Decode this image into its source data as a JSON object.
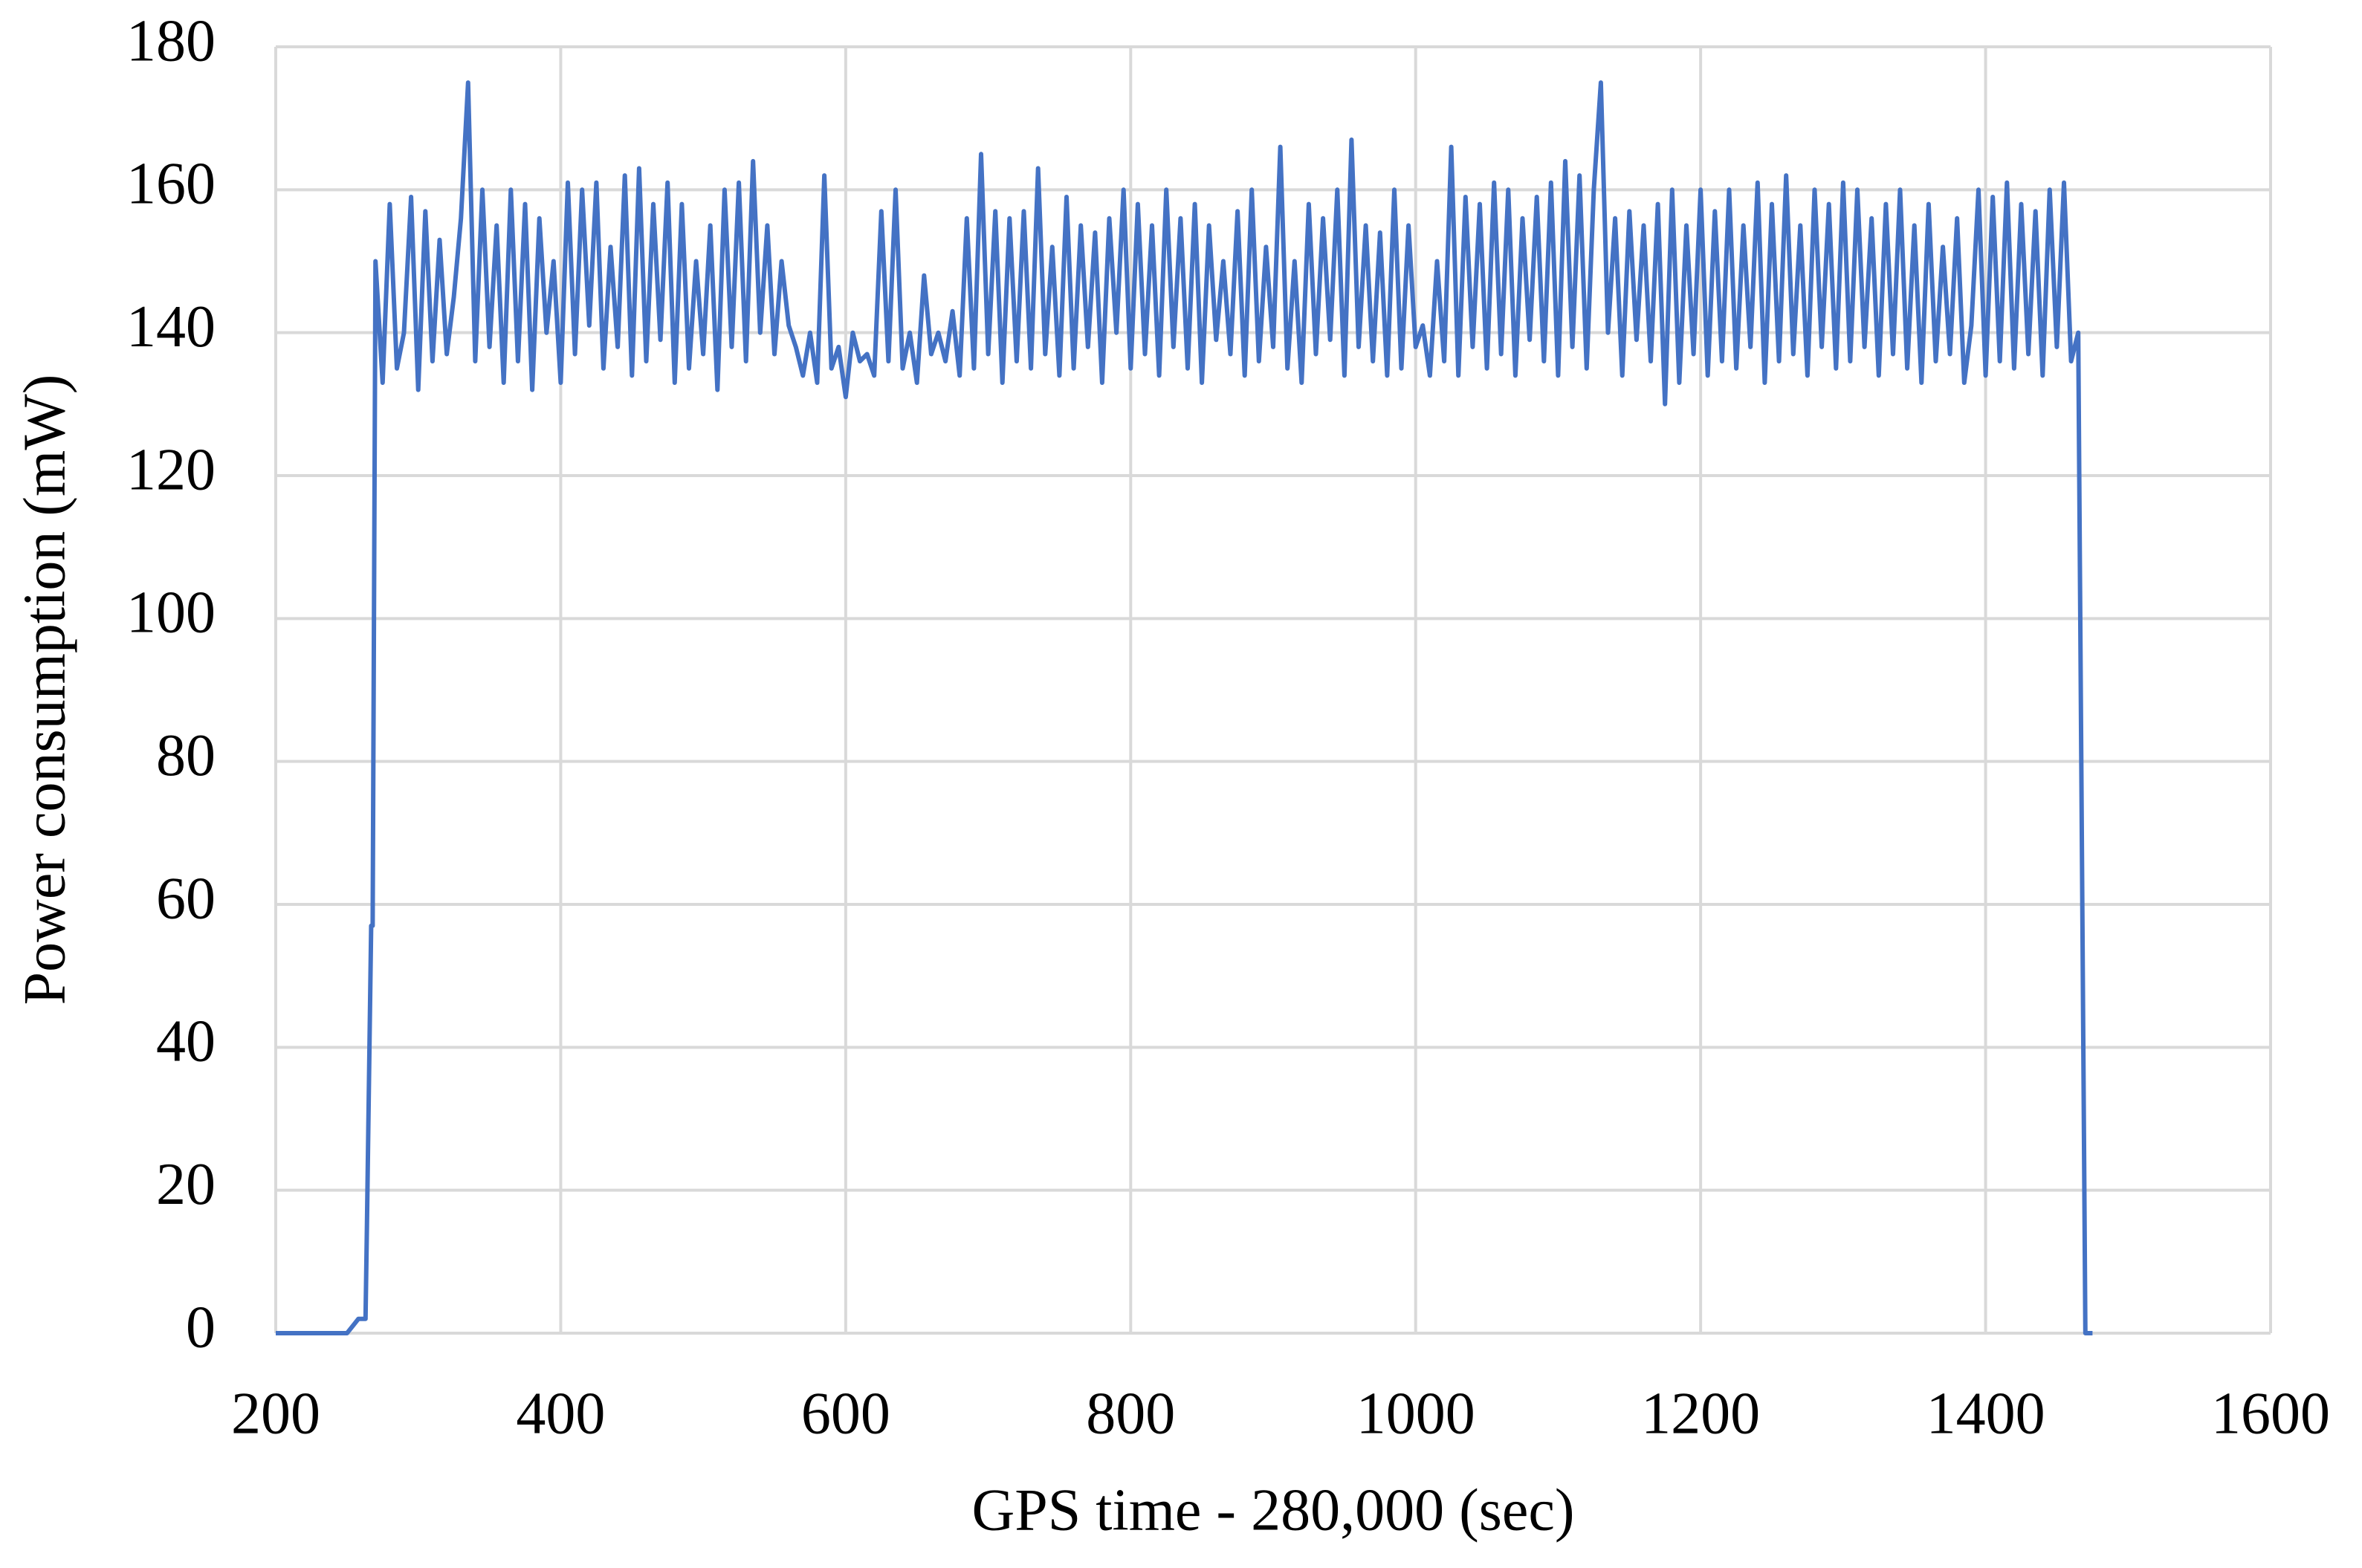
{
  "chart_data": {
    "type": "line",
    "x_label": "GPS time - 280,000  (sec)",
    "y_label": "Power consumption (mW)",
    "color": "#4472c4",
    "grid": true,
    "xlim": [
      200,
      1600
    ],
    "xticks": [
      200,
      400,
      600,
      800,
      1000,
      1200,
      1400,
      1600
    ],
    "ylim": [
      0,
      180
    ],
    "yticks": [
      0,
      20,
      40,
      60,
      80,
      100,
      120,
      140,
      160,
      180
    ],
    "x": [
      200,
      250,
      258,
      263,
      264,
      267,
      268,
      270,
      275,
      280,
      285,
      290,
      295,
      300,
      305,
      310,
      315,
      320,
      325,
      330,
      335,
      340,
      345,
      350,
      355,
      360,
      365,
      370,
      375,
      380,
      385,
      390,
      395,
      400,
      405,
      410,
      415,
      420,
      425,
      430,
      435,
      440,
      445,
      450,
      455,
      460,
      465,
      470,
      475,
      480,
      485,
      490,
      495,
      500,
      505,
      510,
      515,
      520,
      525,
      530,
      535,
      540,
      545,
      550,
      555,
      560,
      565,
      570,
      575,
      580,
      585,
      590,
      595,
      600,
      605,
      610,
      615,
      620,
      625,
      630,
      635,
      640,
      645,
      650,
      655,
      660,
      665,
      670,
      675,
      680,
      685,
      690,
      695,
      700,
      705,
      710,
      715,
      720,
      725,
      730,
      735,
      740,
      745,
      750,
      755,
      760,
      765,
      770,
      775,
      780,
      785,
      790,
      795,
      800,
      805,
      810,
      815,
      820,
      825,
      830,
      835,
      840,
      845,
      850,
      855,
      860,
      865,
      870,
      875,
      880,
      885,
      890,
      895,
      900,
      905,
      910,
      915,
      920,
      925,
      930,
      935,
      940,
      945,
      950,
      955,
      960,
      965,
      970,
      975,
      980,
      985,
      990,
      995,
      1000,
      1005,
      1010,
      1015,
      1020,
      1025,
      1030,
      1035,
      1040,
      1045,
      1050,
      1055,
      1060,
      1065,
      1070,
      1075,
      1080,
      1085,
      1090,
      1095,
      1100,
      1105,
      1110,
      1115,
      1120,
      1125,
      1130,
      1135,
      1140,
      1145,
      1150,
      1155,
      1160,
      1165,
      1170,
      1175,
      1180,
      1185,
      1190,
      1195,
      1200,
      1205,
      1210,
      1215,
      1220,
      1225,
      1230,
      1235,
      1240,
      1245,
      1250,
      1255,
      1260,
      1265,
      1270,
      1275,
      1280,
      1285,
      1290,
      1295,
      1300,
      1305,
      1310,
      1315,
      1320,
      1325,
      1330,
      1335,
      1340,
      1345,
      1350,
      1355,
      1360,
      1365,
      1370,
      1375,
      1380,
      1385,
      1390,
      1395,
      1400,
      1405,
      1410,
      1415,
      1420,
      1425,
      1430,
      1435,
      1440,
      1445,
      1450,
      1455,
      1460,
      1465,
      1470,
      1475
    ],
    "values": [
      0,
      0,
      2,
      2,
      15,
      57,
      57,
      150,
      133,
      158,
      135,
      140,
      159,
      132,
      157,
      136,
      153,
      137,
      145,
      156,
      175,
      136,
      160,
      138,
      155,
      133,
      160,
      136,
      158,
      132,
      156,
      140,
      150,
      133,
      161,
      137,
      160,
      141,
      161,
      135,
      152,
      138,
      162,
      134,
      163,
      136,
      158,
      139,
      161,
      133,
      158,
      135,
      150,
      137,
      155,
      132,
      160,
      138,
      161,
      136,
      164,
      140,
      155,
      137,
      150,
      141,
      138,
      134,
      140,
      133,
      162,
      135,
      138,
      131,
      140,
      136,
      137,
      134,
      157,
      136,
      160,
      135,
      140,
      133,
      148,
      137,
      140,
      136,
      143,
      134,
      156,
      135,
      165,
      137,
      157,
      133,
      156,
      136,
      157,
      135,
      163,
      137,
      152,
      134,
      159,
      135,
      155,
      138,
      154,
      133,
      156,
      140,
      160,
      135,
      158,
      137,
      155,
      134,
      160,
      138,
      156,
      135,
      158,
      133,
      155,
      139,
      150,
      137,
      157,
      134,
      160,
      136,
      152,
      138,
      166,
      135,
      150,
      133,
      158,
      137,
      156,
      139,
      160,
      134,
      167,
      138,
      155,
      136,
      154,
      134,
      160,
      135,
      155,
      138,
      141,
      134,
      150,
      136,
      166,
      134,
      159,
      138,
      158,
      135,
      161,
      137,
      160,
      134,
      156,
      139,
      159,
      136,
      161,
      134,
      164,
      138,
      162,
      135,
      160,
      175,
      140,
      156,
      134,
      157,
      139,
      155,
      136,
      158,
      130,
      160,
      133,
      155,
      137,
      160,
      134,
      157,
      136,
      160,
      135,
      155,
      138,
      161,
      133,
      158,
      136,
      162,
      137,
      155,
      134,
      160,
      138,
      158,
      135,
      161,
      136,
      160,
      138,
      156,
      134,
      158,
      137,
      160,
      135,
      155,
      133,
      158,
      136,
      152,
      137,
      156,
      133,
      141,
      160,
      134,
      159,
      136,
      161,
      135,
      158,
      137,
      157,
      134,
      160,
      138,
      161,
      136,
      140,
      0,
      0
    ]
  }
}
